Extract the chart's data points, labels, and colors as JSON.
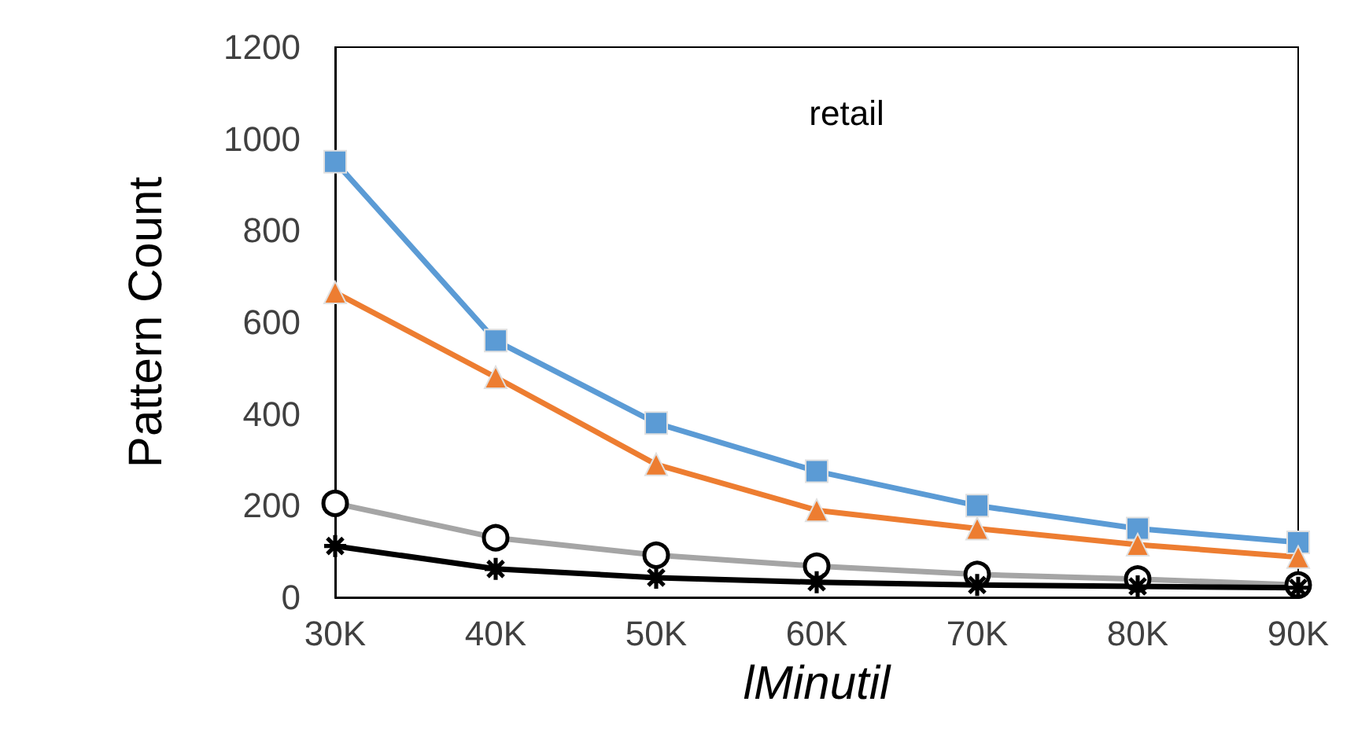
{
  "chart_data": {
    "type": "line",
    "title": "retail",
    "xlabel": "lMinutil",
    "ylabel": "Pattern Count",
    "categories": [
      "30K",
      "40K",
      "50K",
      "60K",
      "70K",
      "80K",
      "90K"
    ],
    "ylim": [
      0,
      1200
    ],
    "yticks": [
      0,
      200,
      400,
      600,
      800,
      1000,
      1200
    ],
    "grid": false,
    "series": [
      {
        "color": "#5b9bd5",
        "marker": "square",
        "values": [
          950,
          560,
          380,
          275,
          200,
          150,
          120
        ]
      },
      {
        "color": "#ed7d31",
        "marker": "triangle",
        "values": [
          665,
          480,
          290,
          190,
          150,
          115,
          88
        ]
      },
      {
        "color": "#a5a5a5",
        "marker": "circle",
        "values": [
          205,
          130,
          92,
          68,
          50,
          40,
          27
        ]
      },
      {
        "color": "#000000",
        "marker": "cross",
        "values": [
          112,
          62,
          43,
          33,
          27,
          24,
          21
        ]
      }
    ]
  }
}
